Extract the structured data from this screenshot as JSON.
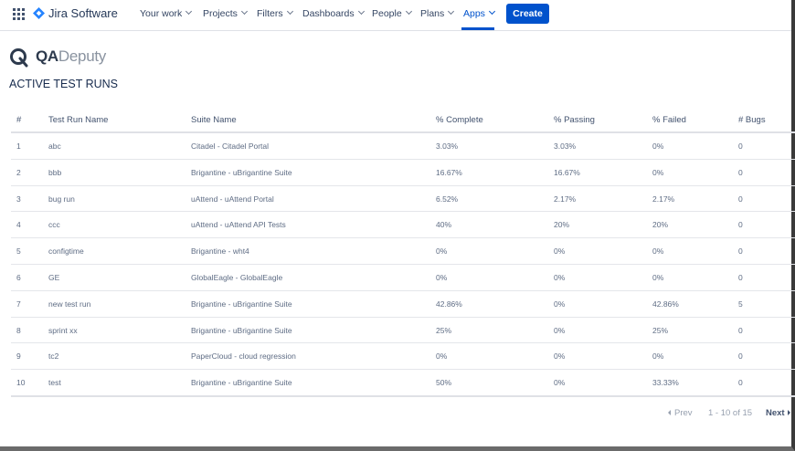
{
  "nav": {
    "product": "Jira Software",
    "items": [
      "Your work",
      "Projects",
      "Filters",
      "Dashboards",
      "People",
      "Plans",
      "Apps"
    ],
    "create": "Create"
  },
  "logo": {
    "parts": [
      "QA",
      "Deputy"
    ]
  },
  "heading": "ACTIVE TEST RUNS",
  "table": {
    "columns": [
      "#",
      "Test Run Name",
      "Suite Name",
      "% Complete",
      "% Passing",
      "% Failed",
      "# Bugs"
    ],
    "rows": [
      [
        "1",
        "abc",
        "Citadel - Citadel Portal",
        "3.03%",
        "3.03%",
        "0%",
        "0"
      ],
      [
        "2",
        "bbb",
        "Brigantine - uBrigantine Suite",
        "16.67%",
        "16.67%",
        "0%",
        "0"
      ],
      [
        "3",
        "bug run",
        "uAttend - uAttend Portal",
        "6.52%",
        "2.17%",
        "2.17%",
        "0"
      ],
      [
        "4",
        "ccc",
        "uAttend - uAttend API Tests",
        "40%",
        "20%",
        "20%",
        "0"
      ],
      [
        "5",
        "configtime",
        "Brigantine - wht4",
        "0%",
        "0%",
        "0%",
        "0"
      ],
      [
        "6",
        "GE",
        "GlobalEagle - GlobalEagle",
        "0%",
        "0%",
        "0%",
        "0"
      ],
      [
        "7",
        "new test run",
        "Brigantine - uBrigantine Suite",
        "42.86%",
        "0%",
        "42.86%",
        "5"
      ],
      [
        "8",
        "sprint xx",
        "Brigantine - uBrigantine Suite",
        "25%",
        "0%",
        "25%",
        "0"
      ],
      [
        "9",
        "tc2",
        "PaperCloud - cloud regression",
        "0%",
        "0%",
        "0%",
        "0"
      ],
      [
        "10",
        "test",
        "Brigantine - uBrigantine Suite",
        "50%",
        "0%",
        "33.33%",
        "0"
      ]
    ]
  },
  "pagination": {
    "prev": "Prev",
    "range": "1 - 10 of 15",
    "next": "Next"
  }
}
